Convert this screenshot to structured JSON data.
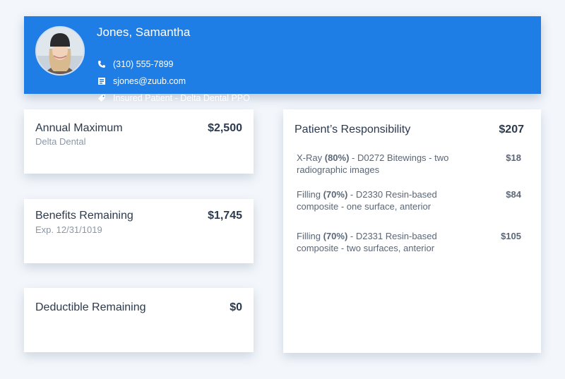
{
  "patient": {
    "name": "Jones, Samantha",
    "phone": "(310) 555-7899",
    "email": "sjones@zuub.com",
    "insurance": "Insured Patient - Delta Dental PPO"
  },
  "cards": {
    "annual": {
      "title": "Annual Maximum",
      "subtitle": "Delta Dental",
      "value": "$2,500"
    },
    "remaining": {
      "title": "Benefits Remaining",
      "subtitle": "Exp. 12/31/1019",
      "value": "$1,745"
    },
    "deductible": {
      "title": "Deductible Remaining",
      "value": "$0"
    }
  },
  "responsibility": {
    "title": "Patient’s Responsibility",
    "total": "$207",
    "items": [
      {
        "service": "X-Ray",
        "percent": "(80%)",
        "description": " - D0272 Bitewings - two radiographic images",
        "amount": "$18"
      },
      {
        "service": "Filling",
        "percent": "(70%)",
        "description": " - D2330 Resin-based composite - one surface, anterior",
        "amount": "$84"
      },
      {
        "service": "Filling",
        "percent": "(70%)",
        "description": " - D2331 Resin-based composite - two surfaces, anterior",
        "amount": "$105"
      }
    ]
  },
  "icons": [
    "phone-icon",
    "mail-icon",
    "tag-icon"
  ],
  "colors": {
    "header": "#1f7de6",
    "background": "#f3f7fc"
  }
}
